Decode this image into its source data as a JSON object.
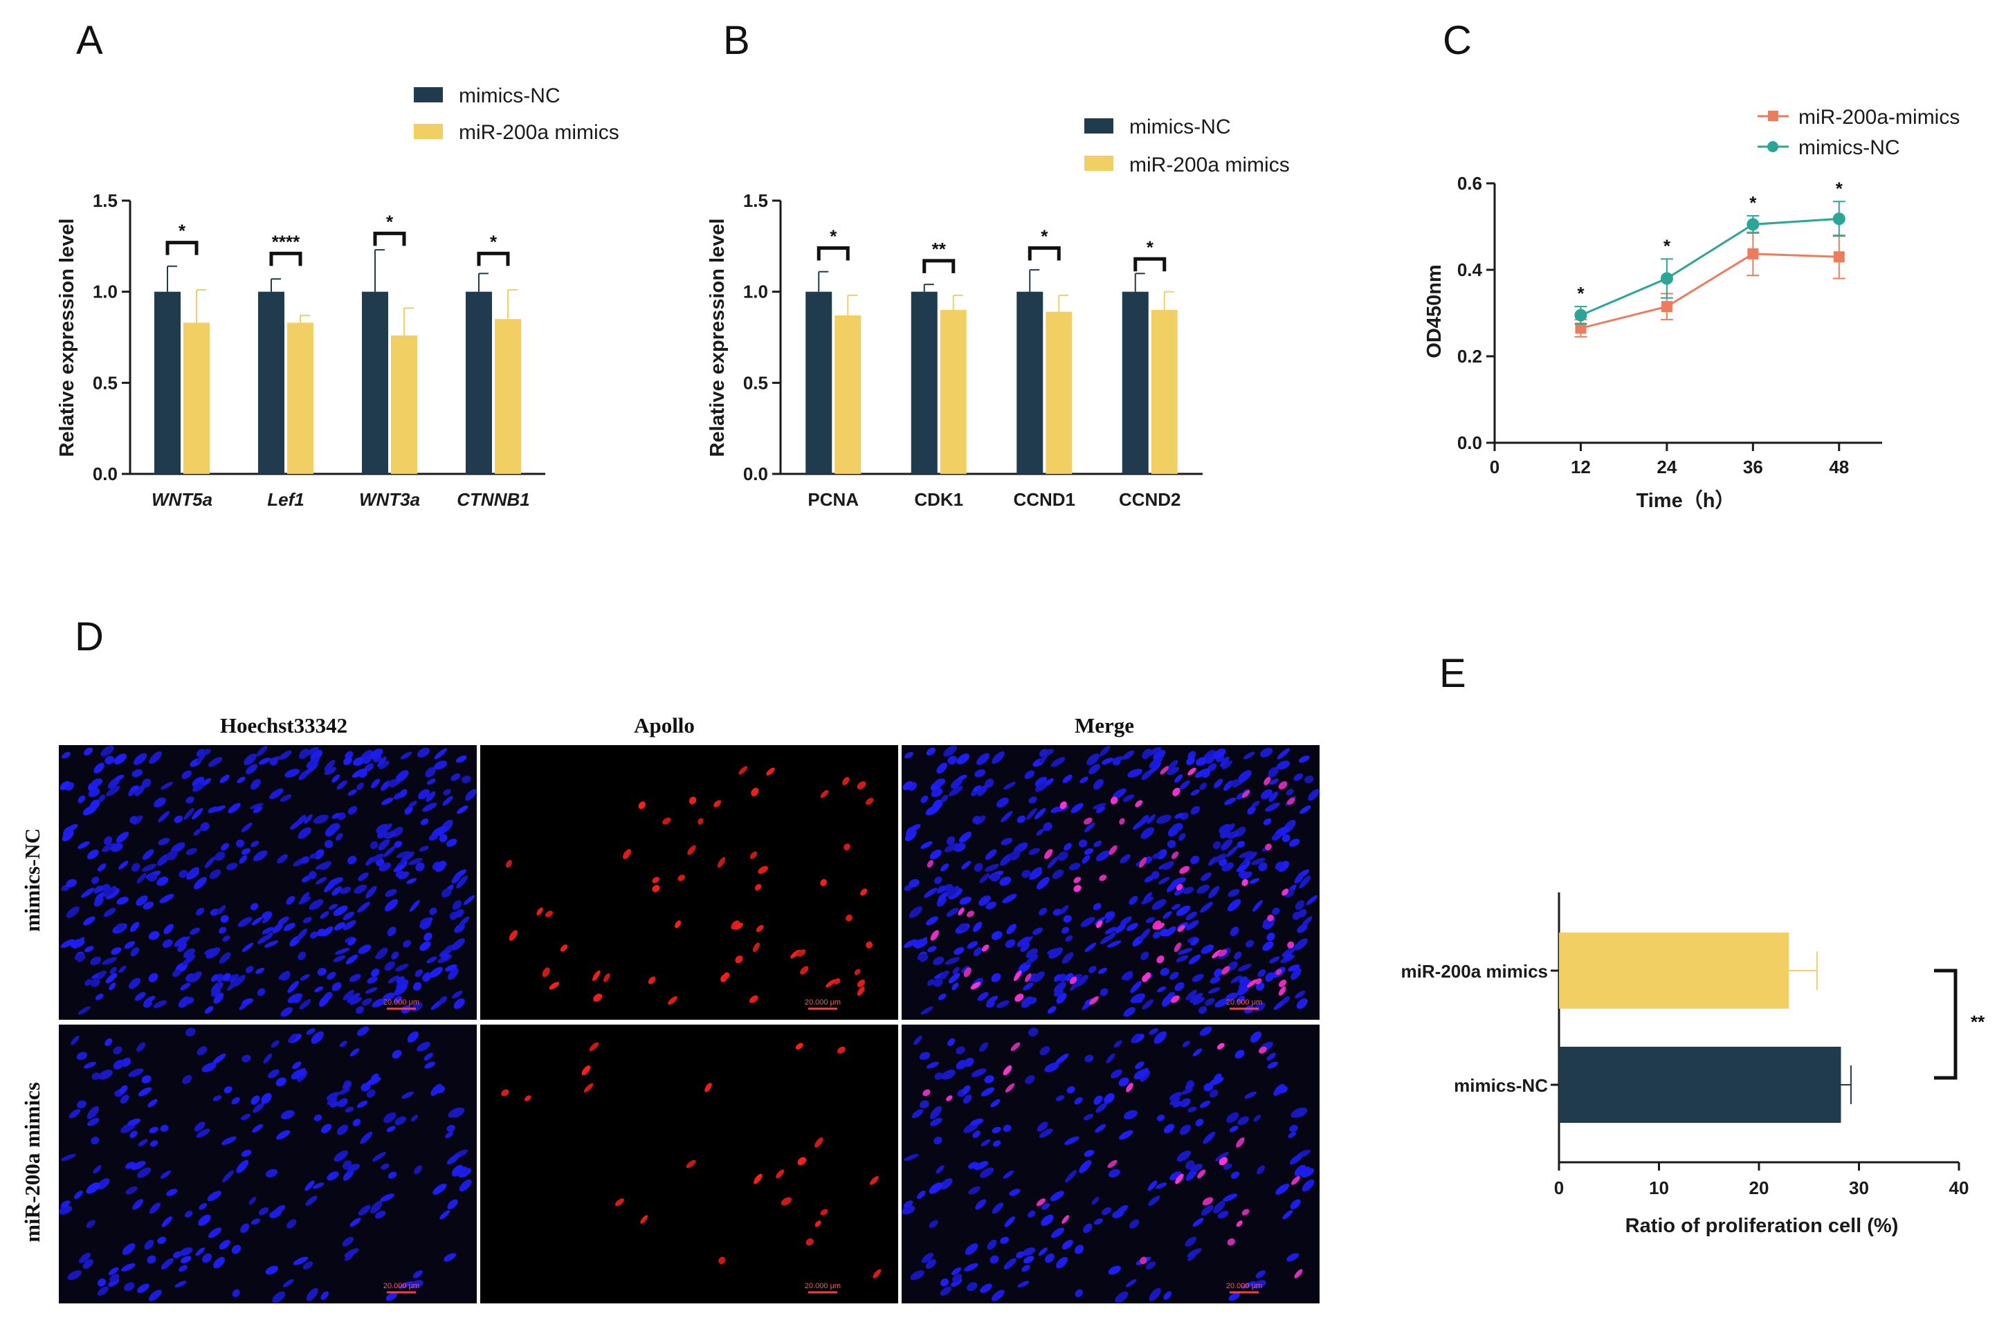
{
  "colors": {
    "nc": "#1f3b4d",
    "mimic": "#f2cf63",
    "line_mimic": "#ef7b5d",
    "line_nc": "#2ba596",
    "axis": "#1a1a1a"
  },
  "panels": {
    "A": "A",
    "B": "B",
    "C": "C",
    "D": "D",
    "E": "E"
  },
  "chart_data": [
    {
      "id": "A",
      "type": "bar",
      "title": "",
      "ylabel": "Relative expression level",
      "ylim": [
        0,
        1.5
      ],
      "yticks": [
        "0.0",
        "0.5",
        "1.0",
        "1.5"
      ],
      "categories": [
        "WNT5a",
        "Lef1",
        "WNT3a",
        "CTNNB1"
      ],
      "categories_italic": true,
      "legend": [
        "mimics-NC",
        "miR-200a mimics"
      ],
      "series": [
        {
          "name": "mimics-NC",
          "values": [
            1.0,
            1.0,
            1.0,
            1.0
          ],
          "errors": [
            0.14,
            0.07,
            0.23,
            0.1
          ]
        },
        {
          "name": "miR-200a mimics",
          "values": [
            0.83,
            0.83,
            0.76,
            0.85
          ],
          "errors": [
            0.18,
            0.04,
            0.15,
            0.16
          ]
        }
      ],
      "significance": [
        "*",
        "****",
        "*",
        "*"
      ],
      "sig_heights": [
        1.27,
        1.21,
        1.32,
        1.21
      ]
    },
    {
      "id": "B",
      "type": "bar",
      "title": "",
      "ylabel": "Relative expression level",
      "ylim": [
        0,
        1.5
      ],
      "yticks": [
        "0.0",
        "0.5",
        "1.0",
        "1.5"
      ],
      "categories": [
        "PCNA",
        "CDK1",
        "CCND1",
        "CCND2"
      ],
      "categories_italic": false,
      "legend": [
        "mimics-NC",
        "miR-200a mimics"
      ],
      "series": [
        {
          "name": "mimics-NC",
          "values": [
            1.0,
            1.0,
            1.0,
            1.0
          ],
          "errors": [
            0.11,
            0.04,
            0.12,
            0.1
          ]
        },
        {
          "name": "miR-200a mimics",
          "values": [
            0.87,
            0.9,
            0.89,
            0.9
          ],
          "errors": [
            0.11,
            0.08,
            0.09,
            0.1
          ]
        }
      ],
      "significance": [
        "*",
        "**",
        "*",
        "*"
      ],
      "sig_heights": [
        1.24,
        1.17,
        1.24,
        1.18
      ]
    },
    {
      "id": "C",
      "type": "line",
      "title": "",
      "xlabel": "Time（h）",
      "ylabel": "OD450nm",
      "xlim": [
        0,
        54
      ],
      "ylim": [
        0,
        0.6
      ],
      "xticks": [
        "0",
        "12",
        "24",
        "36",
        "48"
      ],
      "yticks": [
        "0.0",
        "0.2",
        "0.4",
        "0.6"
      ],
      "x": [
        12,
        24,
        36,
        48
      ],
      "series": [
        {
          "name": "miR-200a-mimics",
          "marker": "square",
          "values": [
            0.265,
            0.315,
            0.437,
            0.43
          ],
          "errors": [
            0.02,
            0.03,
            0.05,
            0.05
          ]
        },
        {
          "name": "mimics-NC",
          "marker": "circle",
          "values": [
            0.295,
            0.38,
            0.505,
            0.518
          ],
          "errors": [
            0.02,
            0.045,
            0.02,
            0.04
          ]
        }
      ],
      "significance": [
        "*",
        "*",
        "*",
        "*"
      ]
    },
    {
      "id": "E",
      "type": "bar",
      "orientation": "horizontal",
      "title": "",
      "xlabel": "Ratio of proliferation cell (%)",
      "xlim": [
        0,
        40
      ],
      "xticks": [
        "0",
        "10",
        "20",
        "30",
        "40"
      ],
      "categories": [
        "miR-200a mimics",
        "mimics-NC"
      ],
      "values": [
        23,
        28.2
      ],
      "errors": [
        2.8,
        1.0
      ],
      "significance": "**"
    }
  ],
  "microscopy": {
    "columns": [
      "Hoechst33342",
      "Apollo",
      "Merge"
    ],
    "rows": [
      "mimics-NC",
      "miR-200a mimics"
    ],
    "scale_label": "20.000 μm"
  }
}
